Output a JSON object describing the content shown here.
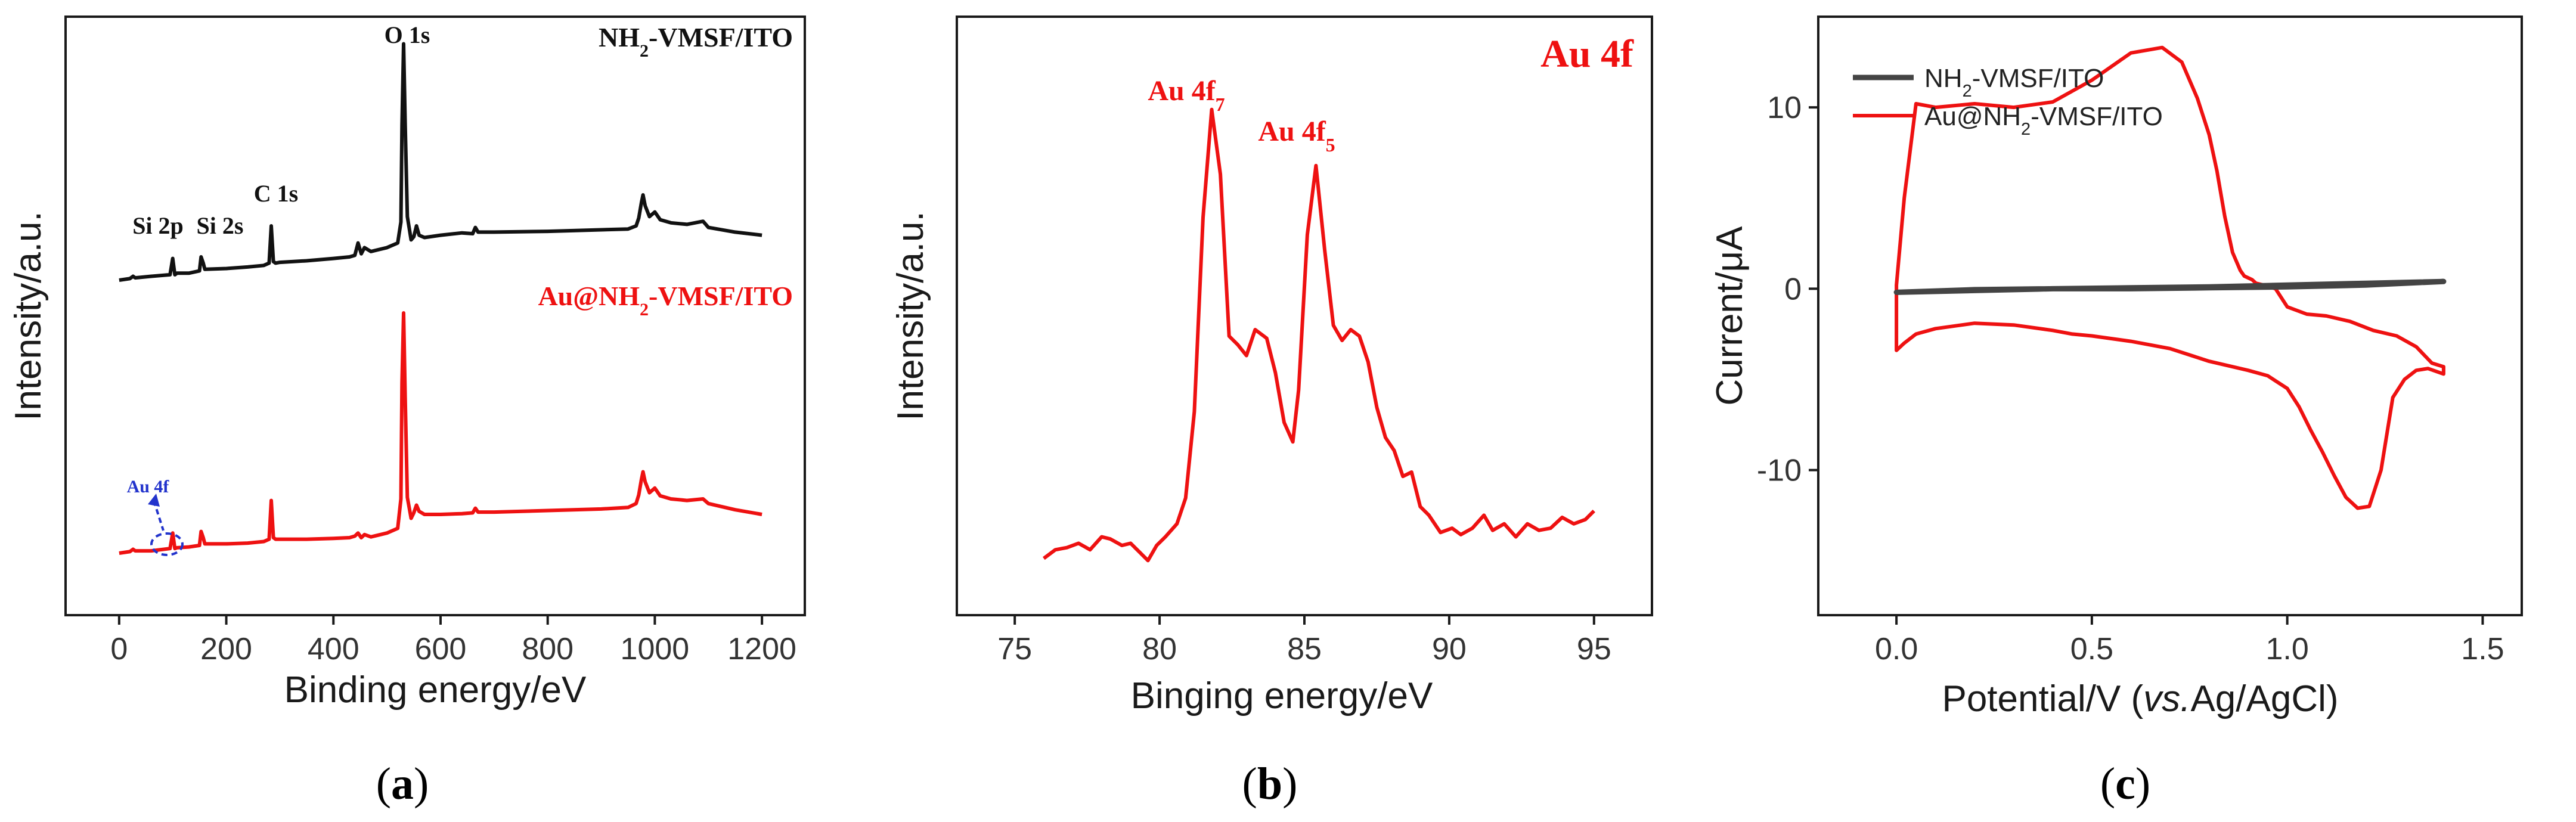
{
  "colors": {
    "black_series": "#111111",
    "red_series": "#ee1111",
    "blue_annotation": "#2233cc",
    "gray_series": "#444444"
  },
  "chart_data": [
    {
      "panel": "a",
      "panel_label": "a",
      "type": "line",
      "xlabel": "Binding energy/eV",
      "ylabel": "Intensity/a.u.",
      "xlim": [
        -100,
        1280
      ],
      "xticks": [
        "0",
        "200",
        "400",
        "600",
        "800",
        "1000",
        "1200"
      ],
      "series": [
        {
          "name_main": "NH",
          "name_sub": "2",
          "name_rest": "-VMSF/ITO",
          "color": "#111111",
          "x": [
            0,
            20,
            26,
            30,
            60,
            95,
            100,
            104,
            108,
            130,
            150,
            153,
            157,
            160,
            200,
            240,
            270,
            280,
            284,
            288,
            292,
            300,
            350,
            400,
            430,
            440,
            446,
            452,
            458,
            470,
            500,
            520,
            526,
            528,
            531,
            534,
            538,
            545,
            550,
            555,
            560,
            570,
            600,
            640,
            660,
            665,
            670,
            700,
            800,
            900,
            950,
            965,
            970,
            975,
            978,
            982,
            990,
            1000,
            1010,
            1030,
            1060,
            1090,
            1100,
            1150,
            1200
          ],
          "y": [
            0,
            2,
            5,
            3,
            5,
            7,
            28,
            7,
            9,
            9,
            12,
            30,
            22,
            14,
            15,
            17,
            19,
            22,
            70,
            24,
            22,
            23,
            25,
            28,
            30,
            32,
            48,
            34,
            42,
            37,
            42,
            48,
            75,
            200,
            305,
            200,
            82,
            52,
            56,
            70,
            58,
            55,
            58,
            61,
            60,
            68,
            62,
            62,
            63,
            65,
            66,
            70,
            80,
            100,
            110,
            96,
            82,
            88,
            78,
            74,
            72,
            76,
            68,
            62,
            58
          ]
        },
        {
          "name_main": "Au@NH",
          "name_sub": "2",
          "name_rest": "-VMSF/ITO",
          "color": "#ee1111",
          "x": [
            0,
            20,
            26,
            30,
            60,
            95,
            100,
            104,
            108,
            130,
            150,
            153,
            157,
            160,
            200,
            240,
            270,
            280,
            284,
            288,
            292,
            300,
            350,
            400,
            430,
            440,
            446,
            452,
            458,
            470,
            500,
            520,
            526,
            528,
            531,
            534,
            538,
            545,
            550,
            555,
            560,
            570,
            600,
            640,
            660,
            665,
            670,
            700,
            800,
            900,
            950,
            965,
            970,
            975,
            978,
            982,
            990,
            1000,
            1010,
            1030,
            1060,
            1090,
            1100,
            1150,
            1200
          ],
          "y": [
            0,
            2,
            5,
            3,
            3,
            6,
            26,
            6,
            7,
            8,
            10,
            28,
            20,
            12,
            12,
            13,
            15,
            18,
            68,
            20,
            18,
            18,
            18,
            19,
            20,
            22,
            26,
            20,
            24,
            21,
            26,
            32,
            70,
            220,
            310,
            200,
            72,
            45,
            52,
            62,
            54,
            50,
            50,
            51,
            52,
            58,
            53,
            53,
            55,
            57,
            59,
            64,
            75,
            95,
            105,
            92,
            78,
            84,
            74,
            70,
            68,
            70,
            64,
            56,
            50
          ]
        }
      ],
      "annotations": {
        "o1s": "O 1s",
        "c1s": "C 1s",
        "si2p": "Si 2p",
        "si2s": "Si 2s",
        "au4f": "Au 4f"
      }
    },
    {
      "panel": "b",
      "panel_label": "b",
      "type": "line",
      "title": "Au 4f",
      "xlabel": "Binging energy/eV",
      "ylabel": "Intensity/a.u.",
      "xlim": [
        73,
        97
      ],
      "xticks": [
        "75",
        "80",
        "85",
        "90",
        "95"
      ],
      "series": [
        {
          "name": "Au 4f",
          "color": "#ee1111",
          "x": [
            76.0,
            76.4,
            76.8,
            77.2,
            77.6,
            78.0,
            78.3,
            78.7,
            79.0,
            79.3,
            79.6,
            79.9,
            80.2,
            80.6,
            80.9,
            81.2,
            81.5,
            81.8,
            82.1,
            82.4,
            82.7,
            83.0,
            83.3,
            83.7,
            84.0,
            84.3,
            84.6,
            84.8,
            85.1,
            85.4,
            85.7,
            86.0,
            86.3,
            86.6,
            86.9,
            87.2,
            87.5,
            87.8,
            88.1,
            88.4,
            88.7,
            89.0,
            89.3,
            89.7,
            90.1,
            90.4,
            90.8,
            91.2,
            91.5,
            91.9,
            92.3,
            92.7,
            93.1,
            93.5,
            93.9,
            94.3,
            94.7,
            95.0
          ],
          "y": [
            2,
            6,
            7,
            9,
            6,
            12,
            11,
            8,
            9,
            5,
            1,
            8,
            12,
            18,
            30,
            70,
            160,
            210,
            180,
            105,
            101,
            96,
            108,
            104,
            88,
            65,
            56,
            80,
            152,
            184,
            145,
            110,
            103,
            108,
            105,
            93,
            72,
            58,
            52,
            40,
            42,
            26,
            22,
            14,
            16,
            13,
            16,
            22,
            15,
            18,
            12,
            18,
            15,
            16,
            21,
            18,
            20,
            24
          ]
        }
      ],
      "annotations": {
        "peak1_main": "Au 4f",
        "peak1_sub": "7",
        "peak2_main": "Au 4f",
        "peak2_sub": "5"
      }
    },
    {
      "panel": "c",
      "panel_label": "c",
      "type": "line",
      "xlabel_main": "Potential/V (",
      "xlabel_italic": "vs.",
      "xlabel_rest": "Ag/AgCl)",
      "ylabel": "Current/μA",
      "xlim": [
        -0.2,
        1.6
      ],
      "ylim": [
        -18,
        15
      ],
      "xticks": [
        "0.0",
        "0.5",
        "1.0",
        "1.5"
      ],
      "yticks": [
        "-10",
        "0",
        "10"
      ],
      "xtick_values": [
        0,
        0.5,
        1.0,
        1.5
      ],
      "ytick_values": [
        -10,
        0,
        10
      ],
      "series": [
        {
          "name_main": "NH",
          "name_sub": "2",
          "name_rest": "-VMSF/ITO",
          "color": "#444444",
          "x": [
            0.0,
            0.2,
            0.4,
            0.6,
            0.8,
            1.0,
            1.2,
            1.4,
            1.2,
            1.0,
            0.8,
            0.6,
            0.4,
            0.2,
            0.0
          ],
          "y": [
            -0.2,
            -0.1,
            0.0,
            0.0,
            0.05,
            0.1,
            0.2,
            0.4,
            0.3,
            0.2,
            0.1,
            0.05,
            0.0,
            -0.05,
            -0.2
          ]
        },
        {
          "name_main": "Au@NH",
          "name_sub": "2",
          "name_rest": "-VMSF/ITO",
          "color": "#ee1111",
          "x": [
            0.0,
            0.02,
            0.05,
            0.1,
            0.2,
            0.3,
            0.4,
            0.45,
            0.5,
            0.6,
            0.7,
            0.8,
            0.9,
            0.95,
            1.0,
            1.03,
            1.06,
            1.09,
            1.12,
            1.15,
            1.18,
            1.21,
            1.24,
            1.27,
            1.3,
            1.33,
            1.36,
            1.4,
            1.4,
            1.37,
            1.33,
            1.28,
            1.22,
            1.16,
            1.1,
            1.05,
            1.0,
            0.97,
            0.94,
            0.92,
            0.91,
            0.9,
            0.89,
            0.88,
            0.86,
            0.84,
            0.82,
            0.8,
            0.77,
            0.73,
            0.68,
            0.6,
            0.5,
            0.4,
            0.3,
            0.2,
            0.1,
            0.05,
            0.02,
            0.0
          ],
          "y": [
            -3.4,
            -3.0,
            -2.5,
            -2.2,
            -1.9,
            -2.0,
            -2.3,
            -2.5,
            -2.6,
            -2.9,
            -3.3,
            -4.0,
            -4.5,
            -4.8,
            -5.5,
            -6.5,
            -7.8,
            -9.0,
            -10.3,
            -11.5,
            -12.1,
            -12.0,
            -10.0,
            -6.0,
            -5.0,
            -4.5,
            -4.4,
            -4.7,
            -4.3,
            -4.1,
            -3.2,
            -2.6,
            -2.3,
            -1.8,
            -1.5,
            -1.4,
            -1.0,
            0.0,
            0.2,
            0.3,
            0.5,
            0.6,
            0.7,
            1.0,
            2.0,
            4.0,
            6.5,
            8.5,
            10.5,
            12.5,
            13.3,
            13.0,
            11.5,
            10.3,
            10.0,
            10.2,
            10.0,
            10.2,
            5.0,
            0.2
          ]
        }
      ]
    }
  ]
}
